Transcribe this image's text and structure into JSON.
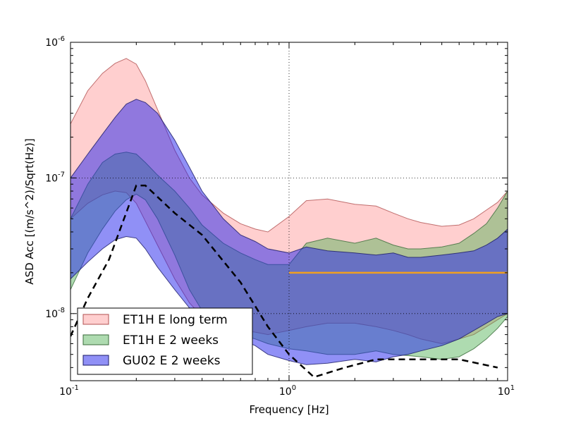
{
  "chart_data": {
    "type": "area",
    "xlabel": "Frequency [Hz]",
    "ylabel": "ASD Acc [(m/s^2)/Sqrt(Hz)]",
    "xscale": "log",
    "yscale": "log",
    "xlim": [
      0.1,
      10
    ],
    "ylim": [
      3.2e-09,
      1e-06
    ],
    "grid": "major (dotted)",
    "legend_position": "lower-left",
    "x_ticks": [
      {
        "value": 0.1,
        "base": "10",
        "exp": "-1"
      },
      {
        "value": 1,
        "base": "10",
        "exp": "0"
      },
      {
        "value": 10,
        "base": "10",
        "exp": "1"
      }
    ],
    "y_ticks": [
      {
        "value": 1e-08,
        "base": "10",
        "exp": "-8"
      },
      {
        "value": 1e-07,
        "base": "10",
        "exp": "-7"
      },
      {
        "value": 1e-06,
        "base": "10",
        "exp": "-6"
      }
    ],
    "series": [
      {
        "name": "ET1H E long term",
        "kind": "band",
        "fill": "#ff8888",
        "stroke": "#b05050",
        "opacity": 0.4,
        "x": [
          0.1,
          0.12,
          0.14,
          0.16,
          0.18,
          0.2,
          0.22,
          0.25,
          0.3,
          0.35,
          0.4,
          0.5,
          0.6,
          0.7,
          0.8,
          1.0,
          1.2,
          1.5,
          2.0,
          2.5,
          3.0,
          3.5,
          4.0,
          5.0,
          6.0,
          7.0,
          8.0,
          9.0,
          10.0
        ],
        "upper": [
          2.5e-07,
          4.4e-07,
          5.9e-07,
          7e-07,
          7.6e-07,
          6.9e-07,
          5.2e-07,
          3.2e-07,
          1.6e-07,
          1e-07,
          7.5e-08,
          5.5e-08,
          4.6e-08,
          4.2e-08,
          4e-08,
          5.2e-08,
          6.8e-08,
          7e-08,
          6.4e-08,
          6.2e-08,
          5.5e-08,
          5e-08,
          4.7e-08,
          4.4e-08,
          4.5e-08,
          5e-08,
          5.8e-08,
          6.6e-08,
          8e-08
        ],
        "lower": [
          5e-08,
          6.5e-08,
          7.5e-08,
          8e-08,
          7.8e-08,
          6.5e-08,
          4.8e-08,
          3.2e-08,
          1.8e-08,
          1.2e-08,
          9.5e-09,
          8e-09,
          7.5e-09,
          7.3e-09,
          7e-09,
          7.5e-09,
          8e-09,
          8.5e-09,
          8.5e-09,
          8e-09,
          7.5e-09,
          7e-09,
          6.5e-09,
          6e-09,
          6.5e-09,
          7e-09,
          8e-09,
          9e-09,
          1e-08
        ]
      },
      {
        "name": "ET1H E 2 weeks",
        "kind": "band",
        "fill": "#4caf50",
        "stroke": "#3a6b3a",
        "opacity": 0.45,
        "x": [
          0.1,
          0.12,
          0.14,
          0.16,
          0.18,
          0.2,
          0.22,
          0.25,
          0.3,
          0.35,
          0.4,
          0.5,
          0.6,
          0.7,
          0.8,
          1.0,
          1.2,
          1.5,
          2.0,
          2.5,
          3.0,
          3.5,
          4.0,
          5.0,
          6.0,
          7.0,
          8.0,
          9.0,
          10.0
        ],
        "upper": [
          5e-08,
          9e-08,
          1.3e-07,
          1.5e-07,
          1.55e-07,
          1.5e-07,
          1.3e-07,
          1.05e-07,
          8e-08,
          6e-08,
          4.5e-08,
          3.3e-08,
          2.8e-08,
          2.5e-08,
          2.3e-08,
          2.3e-08,
          3.3e-08,
          3.6e-08,
          3.3e-08,
          3.6e-08,
          3.2e-08,
          3e-08,
          3e-08,
          3.1e-08,
          3.3e-08,
          3.9e-08,
          4.6e-08,
          6e-08,
          8e-08
        ],
        "lower": [
          1.5e-08,
          2.8e-08,
          4.2e-08,
          5.7e-08,
          6.9e-08,
          7.6e-08,
          6.9e-08,
          5e-08,
          2.7e-08,
          1.5e-08,
          1.05e-08,
          8e-09,
          7e-09,
          6.5e-09,
          6e-09,
          5.5e-09,
          5.3e-09,
          5e-09,
          5e-09,
          5.3e-09,
          5e-09,
          4.9e-09,
          4.8e-09,
          4.6e-09,
          4.8e-09,
          5.5e-09,
          6.5e-09,
          7.8e-09,
          9.5e-09
        ]
      },
      {
        "name": "GU02 E 2 weeks",
        "kind": "band",
        "fill": "#2222ee",
        "stroke": "#1a1a66",
        "opacity": 0.5,
        "x": [
          0.1,
          0.12,
          0.14,
          0.16,
          0.18,
          0.2,
          0.22,
          0.25,
          0.3,
          0.35,
          0.4,
          0.5,
          0.6,
          0.7,
          0.8,
          1.0,
          1.2,
          1.5,
          2.0,
          2.5,
          3.0,
          3.5,
          4.0,
          5.0,
          6.0,
          7.0,
          8.0,
          9.0,
          10.0
        ],
        "upper": [
          1e-07,
          1.5e-07,
          2.1e-07,
          2.8e-07,
          3.5e-07,
          3.8e-07,
          3.6e-07,
          3e-07,
          1.9e-07,
          1.2e-07,
          8e-08,
          5e-08,
          3.8e-08,
          3.4e-08,
          3e-08,
          2.8e-08,
          3.1e-08,
          2.9e-08,
          2.8e-08,
          2.7e-08,
          2.8e-08,
          2.6e-08,
          2.6e-08,
          2.7e-08,
          2.8e-08,
          2.9e-08,
          3.2e-08,
          3.6e-08,
          4.2e-08
        ],
        "lower": [
          1.8e-08,
          2.4e-08,
          3e-08,
          3.5e-08,
          3.7e-08,
          3.6e-08,
          3e-08,
          2.2e-08,
          1.5e-08,
          1.1e-08,
          9e-09,
          7.5e-09,
          6.5e-09,
          5.8e-09,
          5e-09,
          4.5e-09,
          4.2e-09,
          4.3e-09,
          4.6e-09,
          4.4e-09,
          4.8e-09,
          5e-09,
          5.3e-09,
          5.8e-09,
          6.5e-09,
          7.5e-09,
          8.5e-09,
          9.5e-09,
          1e-08
        ]
      },
      {
        "kind": "line",
        "style": "dashed",
        "color": "#000000",
        "x": [
          0.1,
          0.12,
          0.15,
          0.2,
          0.22,
          0.3,
          0.4,
          0.6,
          0.8,
          1.0,
          1.3,
          1.8,
          2.5,
          6.0,
          9.0
        ],
        "values": [
          6.8e-09,
          1.3e-08,
          2.5e-08,
          8.8e-08,
          8.8e-08,
          5.5e-08,
          3.8e-08,
          1.7e-08,
          8e-09,
          5e-09,
          3.4e-09,
          4e-09,
          4.6e-09,
          4.6e-09,
          4e-09
        ]
      },
      {
        "kind": "line",
        "style": "solid",
        "color": "#f0a020",
        "x": [
          1.0,
          10.0
        ],
        "values": [
          2e-08,
          2e-08
        ]
      }
    ]
  }
}
